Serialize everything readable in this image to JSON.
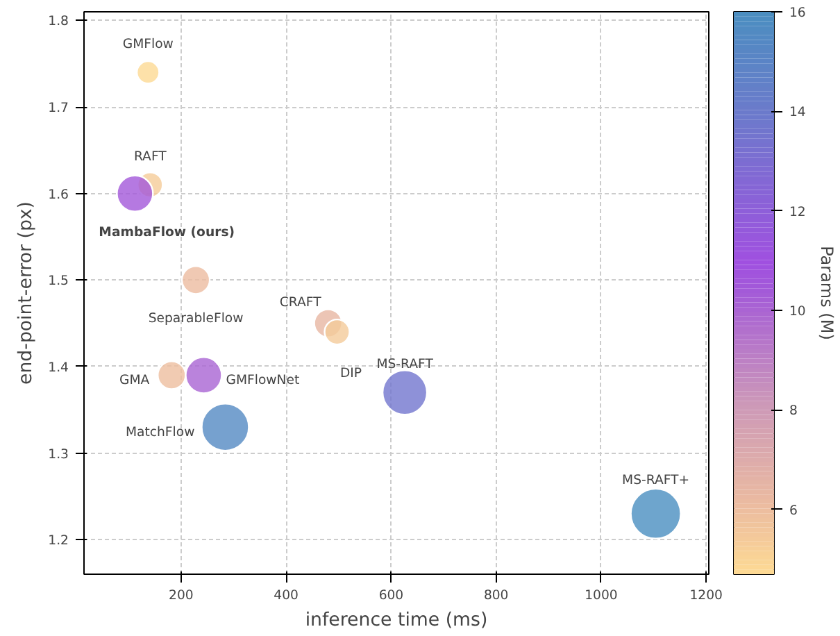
{
  "chart_data": {
    "type": "bubble",
    "xlabel": "inference time (ms)",
    "ylabel": "end-point-error (px)",
    "clabel": "Params (M)",
    "x": [
      137,
      141,
      112,
      228,
      480,
      497,
      182,
      243,
      284,
      626,
      1104
    ],
    "values": [
      1.74,
      1.61,
      1.6,
      1.5,
      1.45,
      1.44,
      1.39,
      1.39,
      1.33,
      1.37,
      1.23
    ],
    "sizes": [
      0.2,
      0.25,
      0.52,
      0.31,
      0.31,
      0.25,
      0.31,
      0.52,
      0.89,
      0.79,
      1
    ],
    "cvalues": [
      4.7,
      5.3,
      10.5,
      6.0,
      6.3,
      5.4,
      5.9,
      10.0,
      15.4,
      13.5,
      16
    ],
    "clim": [
      4.7,
      16
    ],
    "cticks": [
      6,
      8,
      10,
      12,
      14,
      16
    ],
    "xlim": [
      15,
      1205
    ],
    "ylim": [
      1.16,
      1.81
    ],
    "xticks": [
      200,
      400,
      600,
      800,
      1000,
      1200
    ],
    "yticks": [
      1.2,
      1.3,
      1.4,
      1.5,
      1.6,
      1.7,
      1.8
    ],
    "grid": true,
    "marker": "circle",
    "annotations": [
      {
        "text": "GMFlow",
        "x": 137,
        "y": 1.74
      },
      {
        "text": "RAFT",
        "x": 141,
        "y": 1.61
      },
      {
        "text": "MambaFlow (ours)",
        "x": 112,
        "y": 1.6
      },
      {
        "text": "SeparableFlow",
        "x": 228,
        "y": 1.5
      },
      {
        "text": "CRAFT",
        "x": 480,
        "y": 1.45
      },
      {
        "text": "DIP",
        "x": 497,
        "y": 1.44
      },
      {
        "text": "GMA",
        "x": 182,
        "y": 1.39
      },
      {
        "text": "GMFlowNet",
        "x": 243,
        "y": 1.39
      },
      {
        "text": "MatchFlow",
        "x": 284,
        "y": 1.33
      },
      {
        "text": "MS-RAFT",
        "x": 626,
        "y": 1.37
      },
      {
        "text": "MS-RAFT+",
        "x": 1104,
        "y": 1.23
      }
    ]
  }
}
